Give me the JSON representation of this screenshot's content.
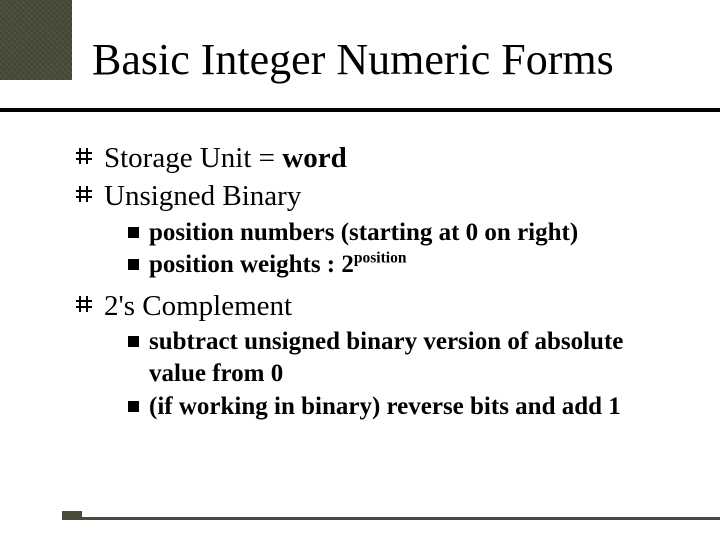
{
  "colors": {
    "text": "#000000",
    "accent": "#4a4a3a",
    "background": "#ffffff"
  },
  "title": "Basic Integer Numeric Forms",
  "items": {
    "i0": {
      "pre": "Storage Unit = ",
      "bold": "word"
    },
    "i1": {
      "text": "Unsigned Binary"
    },
    "i1sub": {
      "a": "position numbers (starting at 0 on right)",
      "b_pre": "position weights : 2",
      "b_sup": "position"
    },
    "i2": {
      "text": "2's Complement"
    },
    "i2sub": {
      "a": "subtract unsigned binary version of absolute value from 0",
      "b": "(if working in binary) reverse bits and add 1"
    }
  }
}
